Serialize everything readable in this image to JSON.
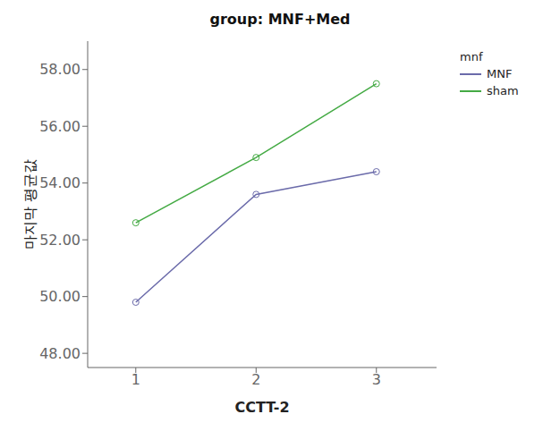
{
  "chart_data": {
    "type": "line",
    "title": "group: MNF+Med",
    "x_label": "CCTT-2",
    "y_label": "마지막 평균값",
    "x": [
      1,
      2,
      3
    ],
    "series": [
      {
        "name": "MNF",
        "color": "#6b6baa",
        "values": [
          49.8,
          53.6,
          54.4
        ],
        "marker": "circle",
        "line_style": "solid"
      },
      {
        "name": "sham",
        "color": "#44aa44",
        "values": [
          52.6,
          54.9,
          57.5
        ],
        "marker": "circle",
        "line_style": "solid"
      }
    ],
    "xlim": [
      0.6,
      3.5
    ],
    "ylim": [
      47.5,
      59.0
    ],
    "xticks": [
      1,
      2,
      3
    ],
    "yticks": [
      {
        "value": 48.0,
        "label": "48.00"
      },
      {
        "value": 50.0,
        "label": "50.00"
      },
      {
        "value": 52.0,
        "label": "52.00"
      },
      {
        "value": 54.0,
        "label": "54.00"
      },
      {
        "value": 56.0,
        "label": "56.00"
      },
      {
        "value": 58.0,
        "label": "58.00"
      }
    ],
    "legend_title": "mnf",
    "legend": "right",
    "grid": false
  }
}
